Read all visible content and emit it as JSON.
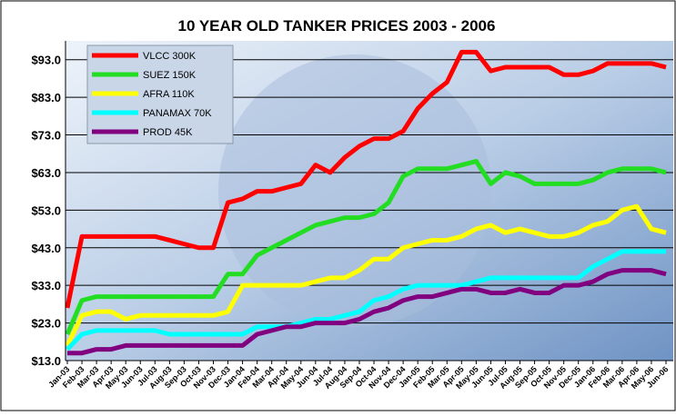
{
  "chart_data": {
    "type": "line",
    "title": "10 YEAR OLD TANKER PRICES 2003 - 2006",
    "categories": [
      "Jan-03",
      "Feb-03",
      "Mar-03",
      "Apr-03",
      "May-03",
      "Jun-03",
      "Jul-03",
      "Aug-03",
      "Sep-03",
      "Oct-03",
      "Nov-03",
      "Dec-03",
      "Jan-04",
      "Feb-04",
      "Mar-04",
      "Apr-04",
      "May-04",
      "Jun-04",
      "Jul-04",
      "Aug-04",
      "Sep-04",
      "Oct-04",
      "Nov-04",
      "Dec-04",
      "Jan-05",
      "Feb-05",
      "Mar-05",
      "Apr-05",
      "May-05",
      "Jun-05",
      "Jul-05",
      "Aug-05",
      "Sep-05",
      "Oct-05",
      "Nov-05",
      "Dec-05",
      "Jan-06",
      "Feb-06",
      "Mar-06",
      "Apr-06",
      "May-06",
      "Jun-06"
    ],
    "series": [
      {
        "name": "VLCC 300K",
        "color": "#ff0000",
        "values": [
          27,
          46,
          46,
          46,
          46,
          46,
          46,
          45,
          44,
          43,
          43,
          55,
          56,
          58,
          58,
          59,
          60,
          65,
          63,
          67,
          70,
          72,
          72,
          74,
          80,
          84,
          87,
          95,
          95,
          90,
          91,
          91,
          91,
          91,
          89,
          89,
          90,
          92,
          92,
          92,
          92,
          91
        ]
      },
      {
        "name": "SUEZ 150K",
        "color": "#22dd22",
        "values": [
          20,
          29,
          30,
          30,
          30,
          30,
          30,
          30,
          30,
          30,
          30,
          36,
          36,
          41,
          43,
          45,
          47,
          49,
          50,
          51,
          51,
          52,
          55,
          62,
          64,
          64,
          64,
          65,
          66,
          60,
          63,
          62,
          60,
          60,
          60,
          60,
          61,
          63,
          64,
          64,
          64,
          63
        ]
      },
      {
        "name": "AFRA 110K",
        "color": "#ffff00",
        "values": [
          17,
          25,
          26,
          26,
          24,
          25,
          25,
          25,
          25,
          25,
          25,
          26,
          33,
          33,
          33,
          33,
          33,
          34,
          35,
          35,
          37,
          40,
          40,
          43,
          44,
          45,
          45,
          46,
          48,
          49,
          47,
          48,
          47,
          46,
          46,
          47,
          49,
          50,
          53,
          54,
          48,
          47
        ]
      },
      {
        "name": "PANAMAX 70K",
        "color": "#00ffff",
        "values": [
          16,
          20,
          21,
          21,
          21,
          21,
          21,
          20,
          20,
          20,
          20,
          20,
          20,
          22,
          22,
          22,
          23,
          24,
          24,
          25,
          26,
          29,
          30,
          32,
          33,
          33,
          33,
          33,
          34,
          35,
          35,
          35,
          35,
          35,
          35,
          35,
          38,
          40,
          42,
          42,
          42,
          42
        ]
      },
      {
        "name": "PROD 45K",
        "color": "#800080",
        "values": [
          15,
          15,
          16,
          16,
          17,
          17,
          17,
          17,
          17,
          17,
          17,
          17,
          17,
          20,
          21,
          22,
          22,
          23,
          23,
          23,
          24,
          26,
          27,
          29,
          30,
          30,
          31,
          32,
          32,
          31,
          31,
          32,
          31,
          31,
          33,
          33,
          34,
          36,
          37,
          37,
          37,
          36
        ]
      }
    ],
    "ylim": [
      13,
      98
    ],
    "yticks": [
      {
        "value": 13,
        "label": "$13.0"
      },
      {
        "value": 23,
        "label": "$23.0"
      },
      {
        "value": 33,
        "label": "$33.0"
      },
      {
        "value": 43,
        "label": "$43.0"
      },
      {
        "value": 53,
        "label": "$53.0"
      },
      {
        "value": 63,
        "label": "$63.0"
      },
      {
        "value": 73,
        "label": "$73.0"
      },
      {
        "value": 83,
        "label": "$83.0"
      },
      {
        "value": 93,
        "label": "$93.0"
      }
    ],
    "grid": true,
    "legend": "top-left"
  }
}
